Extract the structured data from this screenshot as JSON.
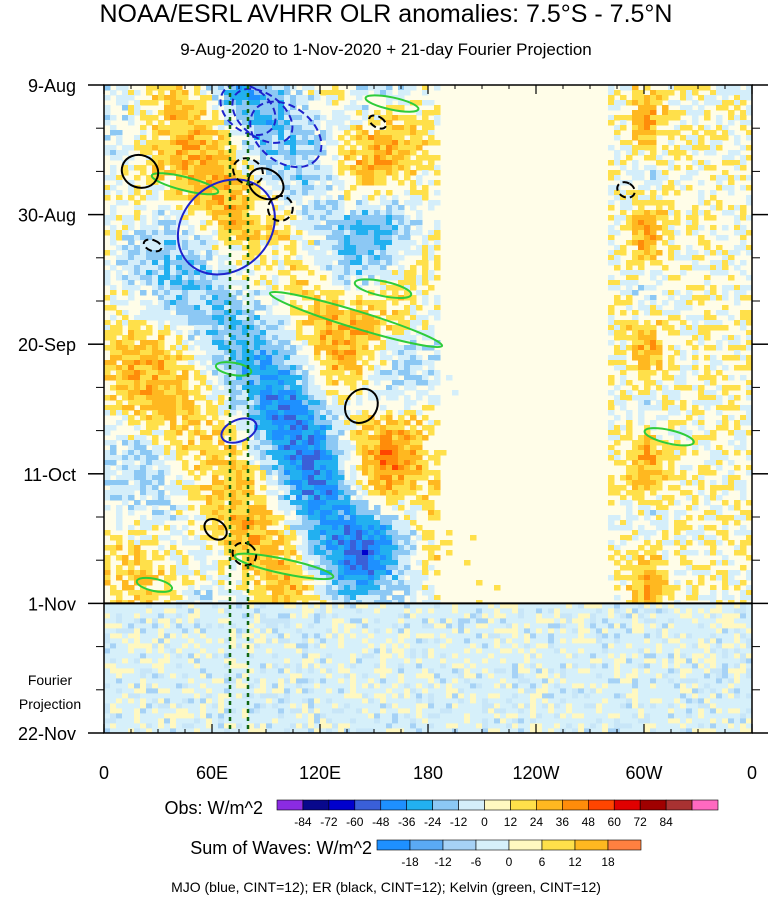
{
  "chart_data": {
    "type": "heatmap",
    "title": "NOAA/ESRL AVHRR OLR anomalies: 7.5°S - 7.5°N",
    "subtitle": "9-Aug-2020 to 1-Nov-2020 + 21-day Fourier Projection",
    "x_tick_labels": [
      "0",
      "60E",
      "120E",
      "180",
      "120W",
      "60W",
      "0"
    ],
    "x_tick_degrees": [
      0,
      60,
      120,
      180,
      240,
      300,
      360
    ],
    "y_tick_labels": [
      "9-Aug",
      "30-Aug",
      "20-Sep",
      "11-Oct",
      "1-Nov",
      "22-Nov"
    ],
    "y_tick_days": [
      0,
      21,
      42,
      63,
      84,
      105
    ],
    "projection_start_day": 84,
    "projection_label_line1": "Fourier",
    "projection_label_line2": "Projection",
    "colorbar_obs": {
      "label": "Obs: W/m^2",
      "ticks": [
        "-84",
        "-72",
        "-60",
        "-48",
        "-36",
        "-24",
        "-12",
        "0",
        "12",
        "24",
        "36",
        "48",
        "60",
        "72",
        "84"
      ],
      "colors": [
        "#8b2be2",
        "#08088c",
        "#0000cd",
        "#3a5fd8",
        "#1e90ff",
        "#22b0f0",
        "#8cc8f4",
        "#d4eefa",
        "#fff8c0",
        "#ffe04a",
        "#ffb820",
        "#ff8c0a",
        "#ff4500",
        "#e00000",
        "#a00000",
        "#a83232",
        "#ff69c0"
      ]
    },
    "colorbar_waves": {
      "label": "Sum of Waves: W/m^2",
      "ticks": [
        "-18",
        "-12",
        "-6",
        "0",
        "6",
        "12",
        "18"
      ],
      "colors": [
        "#1e90ff",
        "#5aaaf4",
        "#a6d2f6",
        "#d6f0fa",
        "#fff8c0",
        "#ffe04a",
        "#ffb820",
        "#ff8040"
      ]
    },
    "footer": "MJO (blue, CINT=12); ER (black, CINT=12); Kelvin (green, CINT=12)",
    "contour_colors": {
      "mjo": "#1f22cc",
      "er": "#000000",
      "kelvin": "#2ecc3a",
      "index_lines": "#116611"
    },
    "index_line_longitudes": [
      70,
      80
    ],
    "mjo_contours": [
      {
        "lon": 80,
        "day": 4,
        "rot": 38,
        "rx": 17,
        "ry": 3,
        "dashed": true
      },
      {
        "lon": 88,
        "day": 5,
        "rot": 38,
        "rx": 19,
        "ry": 3,
        "dashed": true
      },
      {
        "lon": 101,
        "day": 8,
        "rot": 38,
        "rx": 22,
        "ry": 4,
        "dashed": true
      },
      {
        "lon": 68,
        "day": 23,
        "rot": 48,
        "rx": 24,
        "ry": 8,
        "dashed": false
      },
      {
        "lon": 75,
        "day": 56,
        "rot": 68,
        "rx": 6,
        "ry": 2.5,
        "dashed": false
      }
    ],
    "er_contours": [
      {
        "lon": 20,
        "day": 14,
        "rot": -70,
        "rx": 9,
        "ry": 2.5,
        "dashed": false
      },
      {
        "lon": 80,
        "day": 14,
        "rot": -65,
        "rx": 7,
        "ry": 2,
        "dashed": true
      },
      {
        "lon": 90,
        "day": 16,
        "rot": -60,
        "rx": 8,
        "ry": 2.5,
        "dashed": false
      },
      {
        "lon": 98,
        "day": 20,
        "rot": -58,
        "rx": 7,
        "ry": 1.5,
        "dashed": true
      },
      {
        "lon": 27,
        "day": 26,
        "rot": -70,
        "rx": 3,
        "ry": 1,
        "dashed": true
      },
      {
        "lon": 152,
        "day": 6,
        "rot": -60,
        "rx": 3,
        "ry": 1,
        "dashed": true
      },
      {
        "lon": 143,
        "day": 52,
        "rot": -52,
        "rx": 10,
        "ry": 2,
        "dashed": false
      },
      {
        "lon": 62,
        "day": 72,
        "rot": -52,
        "rx": 5,
        "ry": 1.5,
        "dashed": false
      },
      {
        "lon": 78,
        "day": 76,
        "rot": -55,
        "rx": 6,
        "ry": 1.5,
        "dashed": true
      },
      {
        "lon": 290,
        "day": 17,
        "rot": -60,
        "rx": 4,
        "ry": 1,
        "dashed": true
      }
    ],
    "kelvin_contours": [
      {
        "lon": 160,
        "day": 3,
        "rot": 12,
        "rx": 15,
        "ry": 0.5
      },
      {
        "lon": 45,
        "day": 16,
        "rot": 14,
        "rx": 19,
        "ry": 0.6
      },
      {
        "lon": 155,
        "day": 33,
        "rot": 12,
        "rx": 16,
        "ry": 0.7
      },
      {
        "lon": 140,
        "day": 38,
        "rot": 17,
        "rx": 50,
        "ry": 0.9
      },
      {
        "lon": 72,
        "day": 46,
        "rot": 10,
        "rx": 10,
        "ry": 0.5
      },
      {
        "lon": 314,
        "day": 57,
        "rot": 13,
        "rx": 14,
        "ry": 0.6
      },
      {
        "lon": 100,
        "day": 78,
        "rot": 12,
        "rx": 28,
        "ry": 0.7
      },
      {
        "lon": 28,
        "day": 81,
        "rot": 12,
        "rx": 10,
        "ry": 0.5
      }
    ]
  }
}
